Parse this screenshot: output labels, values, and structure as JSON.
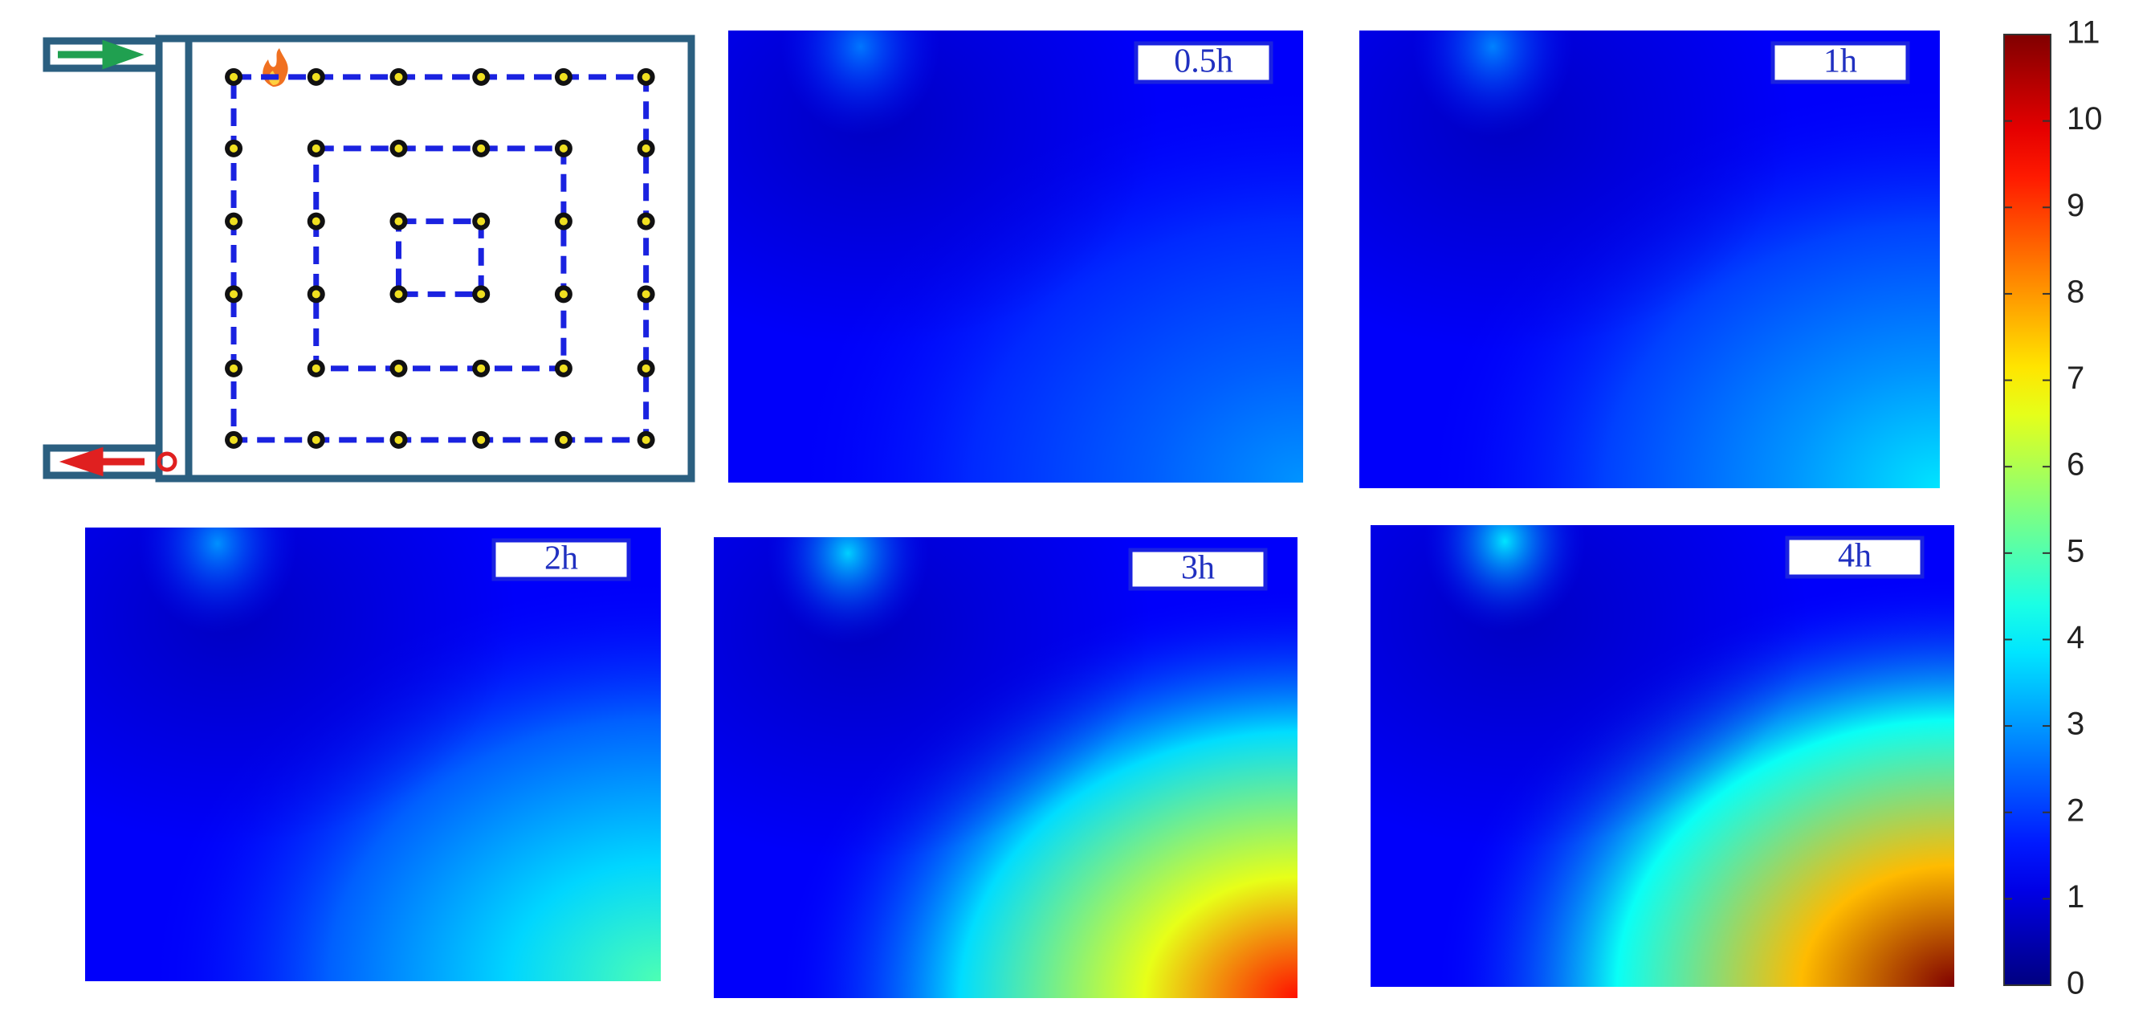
{
  "chart_data": {
    "type": "heatmap",
    "panels": [
      "0.5h",
      "1h",
      "2h",
      "3h",
      "4h"
    ],
    "colorbar": {
      "ylim": [
        0,
        11
      ],
      "yticks": [
        0,
        1,
        2,
        3,
        4,
        5,
        6,
        7,
        8,
        9,
        10,
        11
      ]
    }
  }
}
